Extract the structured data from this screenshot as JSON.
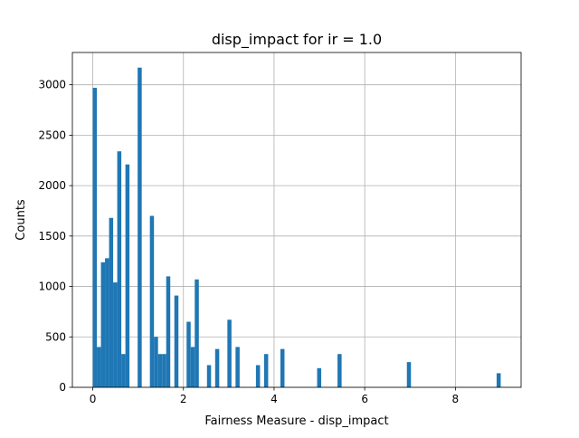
{
  "chart_data": {
    "type": "bar",
    "title": "disp_impact for ir = 1.0",
    "xlabel": "Fairness Measure - disp_impact",
    "ylabel": "Counts",
    "xlim": [
      -0.45,
      9.45
    ],
    "ylim": [
      0,
      3320
    ],
    "xticks": [
      0,
      2,
      4,
      6,
      8
    ],
    "yticks": [
      0,
      500,
      1000,
      1500,
      2000,
      2500,
      3000
    ],
    "grid": true,
    "bar_color": "#1f77b4",
    "bin_width": 0.09,
    "bins": [
      {
        "x": 0.0,
        "value": 2970
      },
      {
        "x": 0.09,
        "value": 400
      },
      {
        "x": 0.18,
        "value": 1240
      },
      {
        "x": 0.27,
        "value": 1280
      },
      {
        "x": 0.36,
        "value": 1680
      },
      {
        "x": 0.45,
        "value": 1040
      },
      {
        "x": 0.54,
        "value": 2340
      },
      {
        "x": 0.63,
        "value": 330
      },
      {
        "x": 0.72,
        "value": 2210
      },
      {
        "x": 0.99,
        "value": 3170
      },
      {
        "x": 1.26,
        "value": 1700
      },
      {
        "x": 1.35,
        "value": 500
      },
      {
        "x": 1.44,
        "value": 330
      },
      {
        "x": 1.53,
        "value": 330
      },
      {
        "x": 1.62,
        "value": 1100
      },
      {
        "x": 1.8,
        "value": 910
      },
      {
        "x": 2.07,
        "value": 650
      },
      {
        "x": 2.16,
        "value": 400
      },
      {
        "x": 2.25,
        "value": 1070
      },
      {
        "x": 2.52,
        "value": 220
      },
      {
        "x": 2.7,
        "value": 380
      },
      {
        "x": 2.97,
        "value": 670
      },
      {
        "x": 3.15,
        "value": 400
      },
      {
        "x": 3.6,
        "value": 220
      },
      {
        "x": 3.78,
        "value": 330
      },
      {
        "x": 4.14,
        "value": 380
      },
      {
        "x": 4.95,
        "value": 190
      },
      {
        "x": 5.4,
        "value": 330
      },
      {
        "x": 6.93,
        "value": 250
      },
      {
        "x": 8.91,
        "value": 140
      }
    ]
  }
}
